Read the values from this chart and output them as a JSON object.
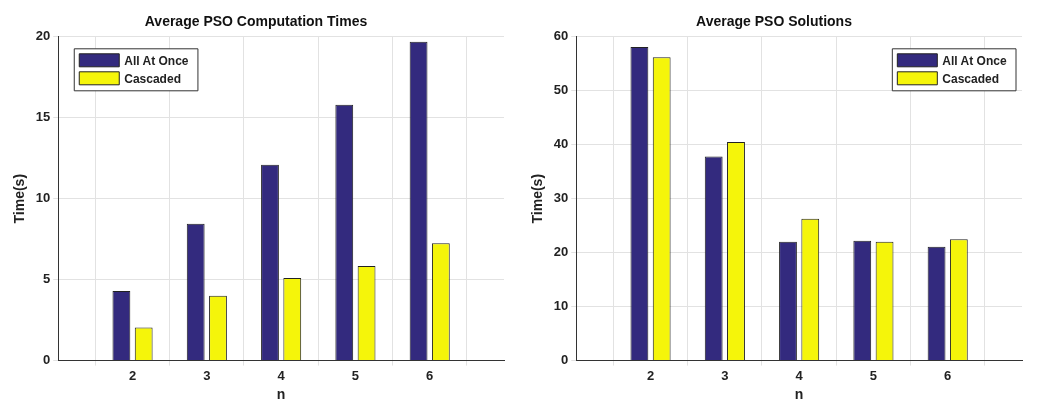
{
  "chart_data": [
    {
      "type": "bar",
      "title": "Average PSO Computation Times",
      "xlabel": "n",
      "ylabel": "Time(s)",
      "x": [
        2,
        3,
        4,
        5,
        6
      ],
      "xlim": [
        1,
        7
      ],
      "xticks": [
        2,
        3,
        4,
        5,
        6
      ],
      "ylim": [
        0,
        20
      ],
      "yticks": [
        0,
        5,
        10,
        15,
        20
      ],
      "grid": true,
      "legend": "top left",
      "series": [
        {
          "name": "All At Once",
          "color": "#332a7e",
          "values": [
            4.3,
            8.45,
            12.1,
            15.8,
            19.7
          ]
        },
        {
          "name": "Cascaded",
          "color": "#f5f50a",
          "values": [
            2.05,
            4.0,
            5.1,
            5.85,
            7.25
          ]
        }
      ]
    },
    {
      "type": "bar",
      "title": "Average PSO Solutions",
      "xlabel": "n",
      "ylabel": "Time(s)",
      "x": [
        2,
        3,
        4,
        5,
        6
      ],
      "xlim": [
        1,
        7
      ],
      "xticks": [
        2,
        3,
        4,
        5,
        6
      ],
      "ylim": [
        0,
        60
      ],
      "yticks": [
        0,
        10,
        20,
        30,
        40,
        50,
        60
      ],
      "grid": true,
      "legend": "top right",
      "series": [
        {
          "name": "All At Once",
          "color": "#332a7e",
          "values": [
            58.1,
            37.8,
            22.0,
            22.2,
            21.1
          ]
        },
        {
          "name": "Cascaded",
          "color": "#f5f50a",
          "values": [
            56.2,
            40.5,
            26.3,
            22.0,
            22.5
          ]
        }
      ]
    }
  ]
}
